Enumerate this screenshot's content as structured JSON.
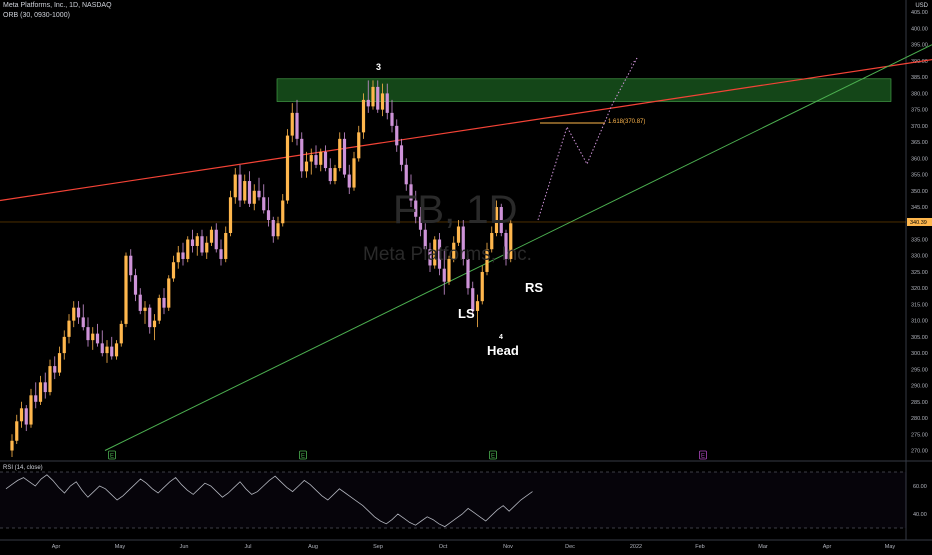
{
  "header": {
    "symbol_line": "Meta Platforms, Inc., 1D, NASDAQ",
    "indicator_line": "ORB (30, 0930-1000)"
  },
  "watermark": {
    "ticker": "FB, 1D",
    "name": "Meta Platforms, Inc."
  },
  "currency": "USD",
  "price_axis": {
    "ticks": [
      "405.00",
      "400.00",
      "395.00",
      "390.00",
      "385.00",
      "380.00",
      "375.00",
      "370.00",
      "365.00",
      "360.00",
      "355.00",
      "350.00",
      "345.00",
      "340.00",
      "335.00",
      "330.00",
      "325.00",
      "320.00",
      "315.00",
      "310.00",
      "305.00",
      "300.00",
      "295.00",
      "290.00",
      "285.00",
      "280.00",
      "275.00",
      "270.00"
    ],
    "last_price_label": "340.39",
    "last_price": 340.39
  },
  "time_axis": {
    "labels": [
      "Apr",
      "May",
      "Jun",
      "Jul",
      "Aug",
      "Sep",
      "Oct",
      "Nov",
      "Dec",
      "2022",
      "Feb",
      "Mar",
      "Apr",
      "May"
    ]
  },
  "annotations": {
    "wave3": "3",
    "wave4": "4",
    "ls": "LS",
    "head": "Head",
    "rs": "RS",
    "fib": "1.618(370.87)"
  },
  "event_markers": [
    "E",
    "E",
    "E",
    "E"
  ],
  "rsi": {
    "label": "RSI (14, close)",
    "ticks": [
      "60.00",
      "40.00"
    ]
  },
  "colors": {
    "up_candle": "#ffb74d",
    "down_candle": "#ce93d8",
    "resistance_line": "#f44336",
    "support_line": "#4caf50",
    "zone_fill": "#1b5e20",
    "rsi_line": "#b2b5be",
    "projection": "#ce93d8",
    "fib_line": "#ffb74d",
    "last_price_bg": "#ffb74d"
  },
  "chart_data": {
    "type": "candlestick",
    "ylim": [
      268,
      410
    ],
    "resistance_zone": [
      377.5,
      384.5
    ],
    "fib_target": 370.87,
    "projection_path": [
      [
        347,
        341
      ],
      [
        353,
        370.87
      ],
      [
        356,
        360
      ],
      [
        361,
        390
      ]
    ],
    "resistance_line": [
      [
        0,
        347
      ],
      [
        330,
        420
      ]
    ],
    "support_line": [
      [
        50,
        270
      ],
      [
        440,
        395
      ]
    ],
    "candles": [
      {
        "o": 270,
        "h": 275,
        "l": 268,
        "c": 273
      },
      {
        "o": 273,
        "h": 281,
        "l": 272,
        "c": 279
      },
      {
        "o": 279,
        "h": 285,
        "l": 277,
        "c": 283
      },
      {
        "o": 283,
        "h": 284,
        "l": 276,
        "c": 278
      },
      {
        "o": 278,
        "h": 289,
        "l": 277,
        "c": 287
      },
      {
        "o": 287,
        "h": 291,
        "l": 283,
        "c": 285
      },
      {
        "o": 285,
        "h": 293,
        "l": 284,
        "c": 291
      },
      {
        "o": 291,
        "h": 294,
        "l": 286,
        "c": 288
      },
      {
        "o": 288,
        "h": 298,
        "l": 287,
        "c": 296
      },
      {
        "o": 296,
        "h": 299,
        "l": 292,
        "c": 294
      },
      {
        "o": 294,
        "h": 302,
        "l": 293,
        "c": 300
      },
      {
        "o": 300,
        "h": 307,
        "l": 298,
        "c": 305
      },
      {
        "o": 305,
        "h": 312,
        "l": 303,
        "c": 310
      },
      {
        "o": 310,
        "h": 316,
        "l": 308,
        "c": 314
      },
      {
        "o": 314,
        "h": 316,
        "l": 309,
        "c": 311
      },
      {
        "o": 311,
        "h": 315,
        "l": 307,
        "c": 308
      },
      {
        "o": 308,
        "h": 311,
        "l": 302,
        "c": 304
      },
      {
        "o": 304,
        "h": 308,
        "l": 301,
        "c": 306
      },
      {
        "o": 306,
        "h": 309,
        "l": 302,
        "c": 303
      },
      {
        "o": 303,
        "h": 307,
        "l": 299,
        "c": 300
      },
      {
        "o": 300,
        "h": 304,
        "l": 297,
        "c": 302
      },
      {
        "o": 302,
        "h": 305,
        "l": 298,
        "c": 299
      },
      {
        "o": 299,
        "h": 304,
        "l": 298,
        "c": 303
      },
      {
        "o": 303,
        "h": 310,
        "l": 302,
        "c": 309
      },
      {
        "o": 309,
        "h": 331,
        "l": 308,
        "c": 330
      },
      {
        "o": 330,
        "h": 332,
        "l": 322,
        "c": 324
      },
      {
        "o": 324,
        "h": 326,
        "l": 316,
        "c": 318
      },
      {
        "o": 318,
        "h": 320,
        "l": 312,
        "c": 313
      },
      {
        "o": 313,
        "h": 316,
        "l": 309,
        "c": 314
      },
      {
        "o": 314,
        "h": 315,
        "l": 306,
        "c": 308
      },
      {
        "o": 308,
        "h": 312,
        "l": 304,
        "c": 310
      },
      {
        "o": 310,
        "h": 318,
        "l": 309,
        "c": 317
      },
      {
        "o": 317,
        "h": 320,
        "l": 312,
        "c": 314
      },
      {
        "o": 314,
        "h": 324,
        "l": 313,
        "c": 323
      },
      {
        "o": 323,
        "h": 330,
        "l": 322,
        "c": 328
      },
      {
        "o": 328,
        "h": 333,
        "l": 326,
        "c": 331
      },
      {
        "o": 331,
        "h": 334,
        "l": 327,
        "c": 329
      },
      {
        "o": 329,
        "h": 336,
        "l": 328,
        "c": 335
      },
      {
        "o": 335,
        "h": 338,
        "l": 331,
        "c": 333
      },
      {
        "o": 333,
        "h": 337,
        "l": 330,
        "c": 336
      },
      {
        "o": 336,
        "h": 338,
        "l": 330,
        "c": 331
      },
      {
        "o": 331,
        "h": 336,
        "l": 329,
        "c": 334
      },
      {
        "o": 334,
        "h": 339,
        "l": 333,
        "c": 338
      },
      {
        "o": 338,
        "h": 340,
        "l": 331,
        "c": 332
      },
      {
        "o": 332,
        "h": 335,
        "l": 327,
        "c": 329
      },
      {
        "o": 329,
        "h": 339,
        "l": 328,
        "c": 337
      },
      {
        "o": 337,
        "h": 350,
        "l": 336,
        "c": 348
      },
      {
        "o": 348,
        "h": 357,
        "l": 346,
        "c": 355
      },
      {
        "o": 355,
        "h": 358,
        "l": 345,
        "c": 347
      },
      {
        "o": 347,
        "h": 355,
        "l": 346,
        "c": 353
      },
      {
        "o": 353,
        "h": 356,
        "l": 345,
        "c": 346
      },
      {
        "o": 346,
        "h": 352,
        "l": 344,
        "c": 350
      },
      {
        "o": 350,
        "h": 354,
        "l": 347,
        "c": 348
      },
      {
        "o": 348,
        "h": 352,
        "l": 343,
        "c": 344
      },
      {
        "o": 344,
        "h": 348,
        "l": 339,
        "c": 341
      },
      {
        "o": 341,
        "h": 342,
        "l": 334,
        "c": 336
      },
      {
        "o": 336,
        "h": 342,
        "l": 335,
        "c": 340
      },
      {
        "o": 340,
        "h": 349,
        "l": 339,
        "c": 347
      },
      {
        "o": 347,
        "h": 369,
        "l": 346,
        "c": 367
      },
      {
        "o": 367,
        "h": 377,
        "l": 365,
        "c": 374
      },
      {
        "o": 374,
        "h": 378,
        "l": 364,
        "c": 366
      },
      {
        "o": 366,
        "h": 368,
        "l": 354,
        "c": 356
      },
      {
        "o": 356,
        "h": 362,
        "l": 354,
        "c": 359
      },
      {
        "o": 359,
        "h": 363,
        "l": 355,
        "c": 361
      },
      {
        "o": 361,
        "h": 364,
        "l": 357,
        "c": 358
      },
      {
        "o": 358,
        "h": 363,
        "l": 356,
        "c": 362
      },
      {
        "o": 362,
        "h": 364,
        "l": 356,
        "c": 357
      },
      {
        "o": 357,
        "h": 360,
        "l": 352,
        "c": 353
      },
      {
        "o": 353,
        "h": 358,
        "l": 352,
        "c": 357
      },
      {
        "o": 357,
        "h": 368,
        "l": 356,
        "c": 366
      },
      {
        "o": 366,
        "h": 368,
        "l": 354,
        "c": 355
      },
      {
        "o": 355,
        "h": 358,
        "l": 349,
        "c": 351
      },
      {
        "o": 351,
        "h": 362,
        "l": 350,
        "c": 360
      },
      {
        "o": 360,
        "h": 370,
        "l": 359,
        "c": 368
      },
      {
        "o": 368,
        "h": 380,
        "l": 366,
        "c": 378
      },
      {
        "o": 378,
        "h": 384,
        "l": 374,
        "c": 376
      },
      {
        "o": 376,
        "h": 384,
        "l": 375,
        "c": 382
      },
      {
        "o": 382,
        "h": 384,
        "l": 374,
        "c": 375
      },
      {
        "o": 375,
        "h": 383,
        "l": 373,
        "c": 380
      },
      {
        "o": 380,
        "h": 383,
        "l": 372,
        "c": 374
      },
      {
        "o": 374,
        "h": 378,
        "l": 368,
        "c": 370
      },
      {
        "o": 370,
        "h": 372,
        "l": 362,
        "c": 364
      },
      {
        "o": 364,
        "h": 366,
        "l": 356,
        "c": 358
      },
      {
        "o": 358,
        "h": 360,
        "l": 350,
        "c": 352
      },
      {
        "o": 352,
        "h": 355,
        "l": 345,
        "c": 347
      },
      {
        "o": 347,
        "h": 350,
        "l": 340,
        "c": 342
      },
      {
        "o": 342,
        "h": 345,
        "l": 336,
        "c": 338
      },
      {
        "o": 338,
        "h": 340,
        "l": 330,
        "c": 332
      },
      {
        "o": 332,
        "h": 334,
        "l": 325,
        "c": 327
      },
      {
        "o": 327,
        "h": 336,
        "l": 326,
        "c": 335
      },
      {
        "o": 335,
        "h": 337,
        "l": 324,
        "c": 326
      },
      {
        "o": 326,
        "h": 332,
        "l": 318,
        "c": 322
      },
      {
        "o": 322,
        "h": 330,
        "l": 321,
        "c": 329
      },
      {
        "o": 329,
        "h": 336,
        "l": 328,
        "c": 334
      },
      {
        "o": 334,
        "h": 341,
        "l": 333,
        "c": 339
      },
      {
        "o": 339,
        "h": 341,
        "l": 327,
        "c": 329
      },
      {
        "o": 329,
        "h": 331,
        "l": 318,
        "c": 320
      },
      {
        "o": 320,
        "h": 322,
        "l": 311,
        "c": 313
      },
      {
        "o": 313,
        "h": 318,
        "l": 308,
        "c": 316
      },
      {
        "o": 316,
        "h": 327,
        "l": 315,
        "c": 325
      },
      {
        "o": 325,
        "h": 334,
        "l": 324,
        "c": 332
      },
      {
        "o": 332,
        "h": 339,
        "l": 331,
        "c": 337
      },
      {
        "o": 337,
        "h": 347,
        "l": 336,
        "c": 345
      },
      {
        "o": 345,
        "h": 346,
        "l": 336,
        "c": 337
      },
      {
        "o": 337,
        "h": 338,
        "l": 327,
        "c": 329
      },
      {
        "o": 329,
        "h": 342,
        "l": 328,
        "c": 340
      }
    ],
    "rsi_values": [
      58,
      61,
      64,
      66,
      63,
      60,
      65,
      68,
      64,
      59,
      55,
      60,
      63,
      57,
      52,
      56,
      60,
      58,
      54,
      50,
      53,
      57,
      61,
      65,
      62,
      58,
      55,
      59,
      63,
      66,
      61,
      57,
      54,
      58,
      62,
      60,
      56,
      52,
      55,
      59,
      63,
      58,
      54,
      56,
      60,
      64,
      67,
      63,
      59,
      56,
      60,
      64,
      61,
      57,
      53,
      50,
      54,
      58,
      55,
      52,
      49,
      46,
      42,
      38,
      35,
      33,
      36,
      40,
      37,
      34,
      32,
      35,
      38,
      36,
      33,
      31,
      34,
      37,
      40,
      44,
      41,
      38,
      35,
      39,
      43,
      46,
      42,
      46,
      50,
      53,
      56
    ]
  }
}
